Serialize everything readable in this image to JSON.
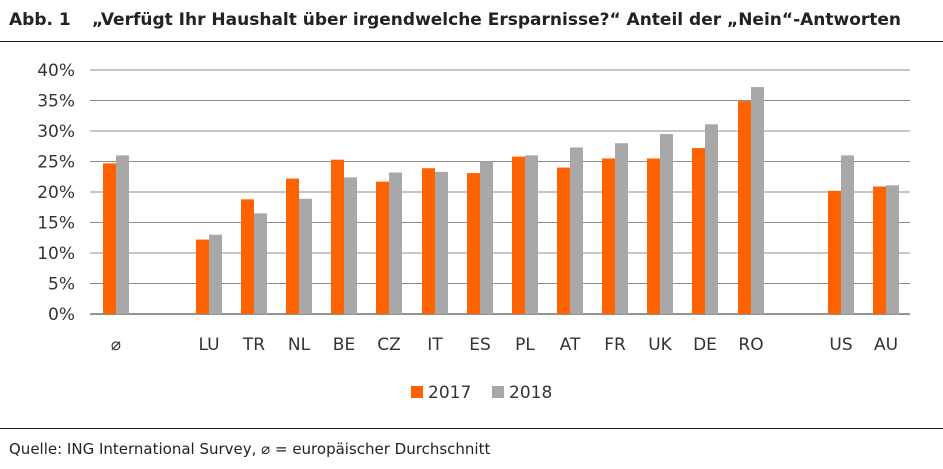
{
  "header": {
    "figure_label": "Abb. 1",
    "title": "„Verfügt Ihr Haushalt über irgendwelche Ersparnisse?“ Anteil der „Nein“-Antworten"
  },
  "footer": {
    "source": "Quelle: ING International Survey, ⌀ = europäischer Durchschnitt"
  },
  "chart_data": {
    "type": "bar",
    "title": "„Verfügt Ihr Haushalt über irgendwelche Ersparnisse?“ Anteil der „Nein“-Antworten",
    "xlabel": "",
    "ylabel": "",
    "ylim": [
      0,
      40
    ],
    "ytick_values": [
      0,
      5,
      10,
      15,
      20,
      25,
      30,
      35,
      40
    ],
    "ytick_labels": [
      "0%",
      "5%",
      "10%",
      "15%",
      "20%",
      "25%",
      "30%",
      "35%",
      "40%"
    ],
    "grid": true,
    "legend_position": "bottom-center",
    "categories": [
      "⌀",
      "LU",
      "TR",
      "NL",
      "BE",
      "CZ",
      "IT",
      "ES",
      "PL",
      "AT",
      "FR",
      "UK",
      "DE",
      "RO",
      "US",
      "AU"
    ],
    "series": [
      {
        "name": "2017",
        "color": "#FF6200",
        "values": [
          24.7,
          12.2,
          18.8,
          22.2,
          25.3,
          21.7,
          23.9,
          23.1,
          25.8,
          24.0,
          25.5,
          25.5,
          27.2,
          34.9,
          20.2,
          20.9
        ]
      },
      {
        "name": "2018",
        "color": "#A8A8A8",
        "values": [
          26.0,
          13.0,
          16.5,
          18.9,
          22.4,
          23.2,
          23.3,
          25.0,
          26.0,
          27.3,
          28.0,
          29.5,
          31.1,
          37.2,
          26.0,
          21.1
        ]
      }
    ]
  }
}
